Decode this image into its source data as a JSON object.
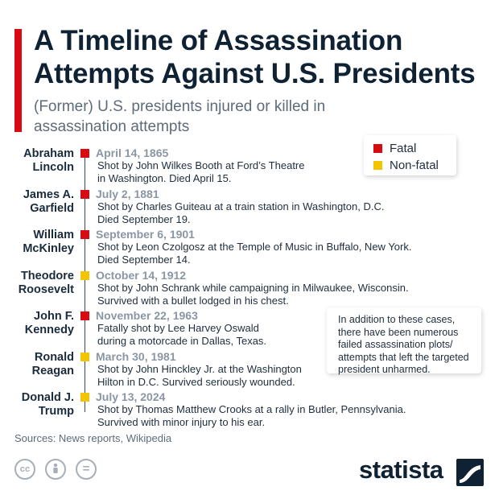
{
  "header": {
    "title": "A Timeline of Assassination Attempts Against U.S. Presidents",
    "subtitle": "(Former) U.S. presidents injured or killed in assassination attempts"
  },
  "legend": {
    "fatal_label": "Fatal",
    "nonfatal_label": "Non-fatal"
  },
  "colors": {
    "accent": "#d90b12",
    "fatal": "#d90b12",
    "nonfatal": "#f5c400"
  },
  "chart_data": {
    "type": "table",
    "title": "A Timeline of Assassination Attempts Against U.S. Presidents",
    "subtitle": "(Former) U.S. presidents injured or killed in assassination attempts",
    "legend": [
      "Fatal",
      "Non-fatal"
    ],
    "events": [
      {
        "name": "Abraham Lincoln",
        "date": "April 14, 1865",
        "outcome": "Fatal",
        "description": "Shot by John Wilkes Booth at Ford's Theatre in Washington. Died April 15."
      },
      {
        "name": "James A. Garfield",
        "date": "July 2, 1881",
        "outcome": "Fatal",
        "description": "Shot by Charles Guiteau at a train station in Washington, D.C. Died September 19."
      },
      {
        "name": "William McKinley",
        "date": "September 6, 1901",
        "outcome": "Fatal",
        "description": "Shot by Leon Czolgosz at the Temple of Music in Buffalo, New York. Died September 14."
      },
      {
        "name": "Theodore Roosevelt",
        "date": "October 14, 1912",
        "outcome": "Non-fatal",
        "description": "Shot by John Schrank while campaigning in Milwaukee, Wisconsin. Survived with a bullet lodged in his chest."
      },
      {
        "name": "John F. Kennedy",
        "date": "November 22, 1963",
        "outcome": "Fatal",
        "description": "Fatally shot by Lee Harvey Oswald during a motorcade in Dallas, Texas."
      },
      {
        "name": "Ronald Reagan",
        "date": "March 30, 1981",
        "outcome": "Non-fatal",
        "description": "Shot by John Hinckley Jr. at the Washington Hilton in D.C. Survived seriously wounded."
      },
      {
        "name": "Donald J. Trump",
        "date": "July 13, 2024",
        "outcome": "Non-fatal",
        "description": "Shot by Thomas Matthew Crooks at a rally in Butler, Pennsylvania. Survived with minor injury to his ear."
      }
    ]
  },
  "events_display": [
    {
      "name_line1": "Abraham",
      "name_line2": "Lincoln",
      "date": "April 14, 1865",
      "desc_line1": "Shot by John Wilkes Booth at Ford’s Theatre",
      "desc_line2": "in Washington. Died April 15."
    },
    {
      "name_line1": "James A.",
      "name_line2": "Garfield",
      "date": "July 2, 1881",
      "desc_line1": "Shot by Charles Guiteau at a train station in Washington, D.C.",
      "desc_line2": "Died September 19."
    },
    {
      "name_line1": "William",
      "name_line2": "McKinley",
      "date": "September 6, 1901",
      "desc_line1": "Shot by Leon Czolgosz at the Temple of Music in Buffalo, New York.",
      "desc_line2": "Died September 14."
    },
    {
      "name_line1": "Theodore",
      "name_line2": "Roosevelt",
      "date": "October 14, 1912",
      "desc_line1": "Shot by John Schrank while campaigning in Milwaukee, Wisconsin.",
      "desc_line2": "Survived with a bullet lodged in his chest."
    },
    {
      "name_line1": "John F.",
      "name_line2": "Kennedy",
      "date": "November 22, 1963",
      "desc_line1": "Fatally shot by Lee Harvey Oswald",
      "desc_line2": "during a motorcade in Dallas, Texas."
    },
    {
      "name_line1": "Ronald",
      "name_line2": "Reagan",
      "date": "March 30, 1981",
      "desc_line1": "Shot by John Hinckley Jr. at the Washington",
      "desc_line2": "Hilton in D.C. Survived seriously wounded."
    },
    {
      "name_line1": "Donald J.",
      "name_line2": "Trump",
      "date": "July 13, 2024",
      "desc_line1": "Shot by Thomas Matthew Crooks at a rally in Butler, Pennsylvania.",
      "desc_line2": "Survived with minor injury to his ear."
    }
  ],
  "note": {
    "line1": "In addition to these cases,",
    "line2": "there have been numerous",
    "line3": "failed assassination plots/",
    "line4": "attempts that left the targeted",
    "line5": "president unharmed."
  },
  "footer": {
    "sources": "Sources: News reports, Wikipedia",
    "cc_icons": [
      "cc-icon",
      "attribution-icon",
      "no-derivatives-icon"
    ],
    "cc_glyphs": [
      "cc",
      "",
      "="
    ],
    "brand": "statista"
  }
}
